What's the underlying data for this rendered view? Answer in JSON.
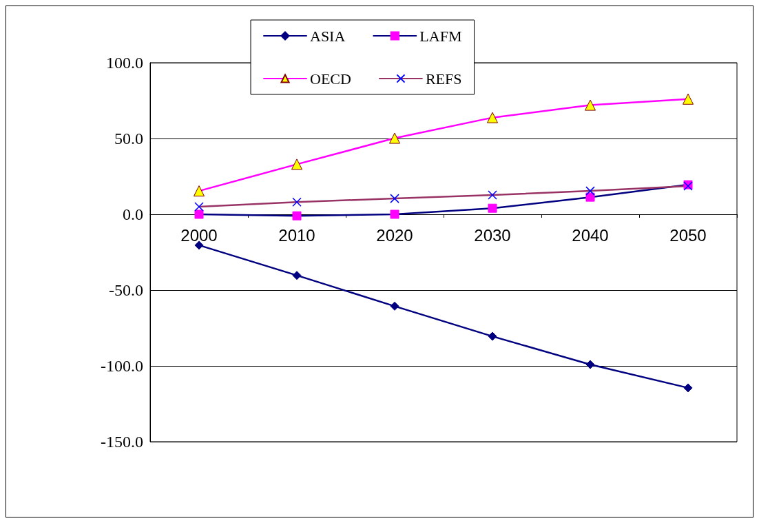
{
  "chart_data": {
    "type": "line",
    "categories": [
      "2000",
      "2010",
      "2020",
      "2030",
      "2040",
      "2050"
    ],
    "series": [
      {
        "name": "ASIA",
        "color": "#000080",
        "marker": "diamond",
        "colors": [
          "#000080",
          "#000080",
          "#000080",
          "#000080",
          "#000080",
          "#000080"
        ],
        "values": [
          -20.4,
          -40.3,
          -60.6,
          -80.5,
          -99.1,
          -114.5
        ]
      },
      {
        "name": "LAFM",
        "color": "#000080",
        "marker": "square",
        "colors": [
          "#ff00ff",
          "#ff00ff",
          "#ff00ff",
          "#ff00ff",
          "#ff00ff",
          "#ff00ff"
        ],
        "values": [
          0,
          -1,
          0,
          4,
          11.3,
          19.5
        ]
      },
      {
        "name": "OECD",
        "color": "#ff00ff",
        "marker": "triangle",
        "colors": [
          "#ffff00",
          "#ffff00",
          "#ffff00",
          "#ffff00",
          "#ffff00",
          "#ffff00"
        ],
        "values": [
          15.4,
          33,
          50.2,
          63.8,
          72,
          76
        ]
      },
      {
        "name": "REFS",
        "color": "#993366",
        "marker": "cross",
        "colors": [
          "#0000ff",
          "#0000ff",
          "#0000ff",
          "#0000ff",
          "#0000ff",
          "#0000ff"
        ],
        "values": [
          5,
          8.1,
          10.4,
          12.7,
          15.4,
          18.6
        ]
      }
    ],
    "ylim": [
      -150,
      100
    ],
    "yticks": [
      {
        "value": -150,
        "label": "-150.0"
      },
      {
        "value": -100,
        "label": "-100.0"
      },
      {
        "value": -50,
        "label": "-50.0"
      },
      {
        "value": 0,
        "label": "0.0"
      },
      {
        "value": 50,
        "label": "50.0"
      },
      {
        "value": 100,
        "label": "100.0"
      }
    ],
    "grid": "y",
    "legend": "top",
    "line_style": "solid"
  }
}
